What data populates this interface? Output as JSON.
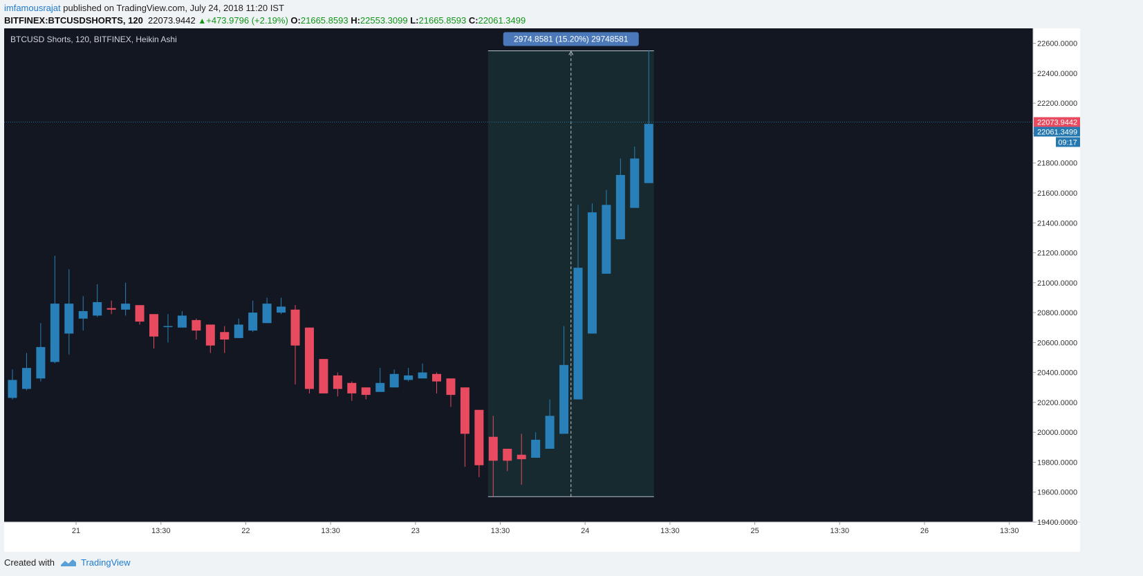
{
  "header": {
    "author": "imfamousrajat",
    "published": " published on TradingView.com, July 24, 2018 11:20 IST",
    "symbol": "BITFINEX:BTCUSDSHORTS, 120",
    "last": "22073.9442",
    "change": "+473.9796 (+2.19%)",
    "open_label": "O:",
    "open": "21665.8593",
    "high_label": "H:",
    "high": "22553.3099",
    "low_label": "L:",
    "low": "21665.8593",
    "close_label": "C:",
    "close": "22061.3499"
  },
  "footer": {
    "created_with": "Created with",
    "brand": "TradingView"
  },
  "colors": {
    "background": "#131722",
    "up": "#2980b9",
    "down": "#e84a5f",
    "measure_fill": "#162a30",
    "measure_label": "#4a78b8",
    "last_price": "#e84a5f",
    "close_price": "#2679b0",
    "axis_bg": "#ffffff",
    "axis_text": "#333333"
  },
  "chart_data": {
    "type": "candlestick",
    "title": "BTCUSD Shorts, 120, BITFINEX, Heikin Ashi",
    "ylim": [
      19400,
      22700
    ],
    "y_ticks": [
      "22600.0000",
      "22400.0000",
      "22200.0000",
      "22000.0000",
      "21800.0000",
      "21600.0000",
      "21400.0000",
      "21200.0000",
      "21000.0000",
      "20800.0000",
      "20600.0000",
      "20400.0000",
      "20200.0000",
      "20000.0000",
      "19800.0000",
      "19600.0000",
      "19400.0000"
    ],
    "x_ticks": [
      {
        "i": 4.5,
        "label": "21"
      },
      {
        "i": 10.5,
        "label": "13:30"
      },
      {
        "i": 16.5,
        "label": "22"
      },
      {
        "i": 22.5,
        "label": "13:30"
      },
      {
        "i": 28.5,
        "label": "23"
      },
      {
        "i": 34.5,
        "label": "13:30"
      },
      {
        "i": 40.5,
        "label": "24"
      },
      {
        "i": 46.5,
        "label": "13:30"
      },
      {
        "i": 52.5,
        "label": "25"
      },
      {
        "i": 58.5,
        "label": "13:30"
      },
      {
        "i": 64.5,
        "label": "26"
      },
      {
        "i": 70.5,
        "label": "13:30"
      }
    ],
    "candles": [
      {
        "o": 20230,
        "h": 20420,
        "l": 20220,
        "c": 20350
      },
      {
        "o": 20290,
        "h": 20530,
        "l": 20280,
        "c": 20430
      },
      {
        "o": 20360,
        "h": 20730,
        "l": 20340,
        "c": 20570
      },
      {
        "o": 20470,
        "h": 21180,
        "l": 20460,
        "c": 20860
      },
      {
        "o": 20660,
        "h": 21090,
        "l": 20520,
        "c": 20860
      },
      {
        "o": 20760,
        "h": 20910,
        "l": 20680,
        "c": 20810
      },
      {
        "o": 20780,
        "h": 20990,
        "l": 20770,
        "c": 20870
      },
      {
        "o": 20830,
        "h": 20880,
        "l": 20790,
        "c": 20820
      },
      {
        "o": 20820,
        "h": 21000,
        "l": 20780,
        "c": 20860
      },
      {
        "o": 20850,
        "h": 20850,
        "l": 20720,
        "c": 20740
      },
      {
        "o": 20790,
        "h": 20790,
        "l": 20560,
        "c": 20640
      },
      {
        "o": 20710,
        "h": 20790,
        "l": 20600,
        "c": 20710
      },
      {
        "o": 20700,
        "h": 20810,
        "l": 20700,
        "c": 20780
      },
      {
        "o": 20750,
        "h": 20760,
        "l": 20620,
        "c": 20680
      },
      {
        "o": 20720,
        "h": 20720,
        "l": 20530,
        "c": 20580
      },
      {
        "o": 20670,
        "h": 20710,
        "l": 20530,
        "c": 20620
      },
      {
        "o": 20630,
        "h": 20760,
        "l": 20630,
        "c": 20720
      },
      {
        "o": 20680,
        "h": 20880,
        "l": 20670,
        "c": 20800
      },
      {
        "o": 20730,
        "h": 20900,
        "l": 20730,
        "c": 20860
      },
      {
        "o": 20800,
        "h": 20900,
        "l": 20790,
        "c": 20840
      },
      {
        "o": 20820,
        "h": 20850,
        "l": 20320,
        "c": 20580
      },
      {
        "o": 20700,
        "h": 20700,
        "l": 20260,
        "c": 20290
      },
      {
        "o": 20490,
        "h": 20490,
        "l": 20260,
        "c": 20260
      },
      {
        "o": 20380,
        "h": 20400,
        "l": 20240,
        "c": 20290
      },
      {
        "o": 20330,
        "h": 20340,
        "l": 20210,
        "c": 20260
      },
      {
        "o": 20300,
        "h": 20300,
        "l": 20220,
        "c": 20250
      },
      {
        "o": 20270,
        "h": 20430,
        "l": 20270,
        "c": 20330
      },
      {
        "o": 20300,
        "h": 20420,
        "l": 20300,
        "c": 20390
      },
      {
        "o": 20350,
        "h": 20430,
        "l": 20340,
        "c": 20380
      },
      {
        "o": 20360,
        "h": 20460,
        "l": 20360,
        "c": 20400
      },
      {
        "o": 20390,
        "h": 20400,
        "l": 20260,
        "c": 20340
      },
      {
        "o": 20360,
        "h": 20360,
        "l": 20170,
        "c": 20250
      },
      {
        "o": 20300,
        "h": 20300,
        "l": 19770,
        "c": 19990
      },
      {
        "o": 20150,
        "h": 20150,
        "l": 19700,
        "c": 19780
      },
      {
        "o": 19970,
        "h": 20110,
        "l": 19570,
        "c": 19810
      },
      {
        "o": 19890,
        "h": 19890,
        "l": 19740,
        "c": 19810
      },
      {
        "o": 19850,
        "h": 19990,
        "l": 19650,
        "c": 19820
      },
      {
        "o": 19830,
        "h": 20000,
        "l": 19830,
        "c": 19950
      },
      {
        "o": 19890,
        "h": 20220,
        "l": 19890,
        "c": 20110
      },
      {
        "o": 19990,
        "h": 20710,
        "l": 19990,
        "c": 20450
      },
      {
        "o": 20220,
        "h": 21520,
        "l": 20220,
        "c": 21100
      },
      {
        "o": 20660,
        "h": 21530,
        "l": 20660,
        "c": 21470
      },
      {
        "o": 21060,
        "h": 21620,
        "l": 21060,
        "c": 21520
      },
      {
        "o": 21290,
        "h": 21830,
        "l": 21290,
        "c": 21720
      },
      {
        "o": 21500,
        "h": 21910,
        "l": 21500,
        "c": 21830
      },
      {
        "o": 21665.8593,
        "h": 22553.3099,
        "l": 21665.8593,
        "c": 22061.3499
      }
    ],
    "measure": {
      "from_index": 34,
      "to_index": 45,
      "low": 19570,
      "high": 22550,
      "label": "2974.8581 (15.20%) 29748581"
    },
    "last_price": {
      "value": 22073.9442,
      "label": "22073.9442"
    },
    "close_price": {
      "value": 22061.3499,
      "label": "22061.3499"
    },
    "countdown": "09:17"
  }
}
